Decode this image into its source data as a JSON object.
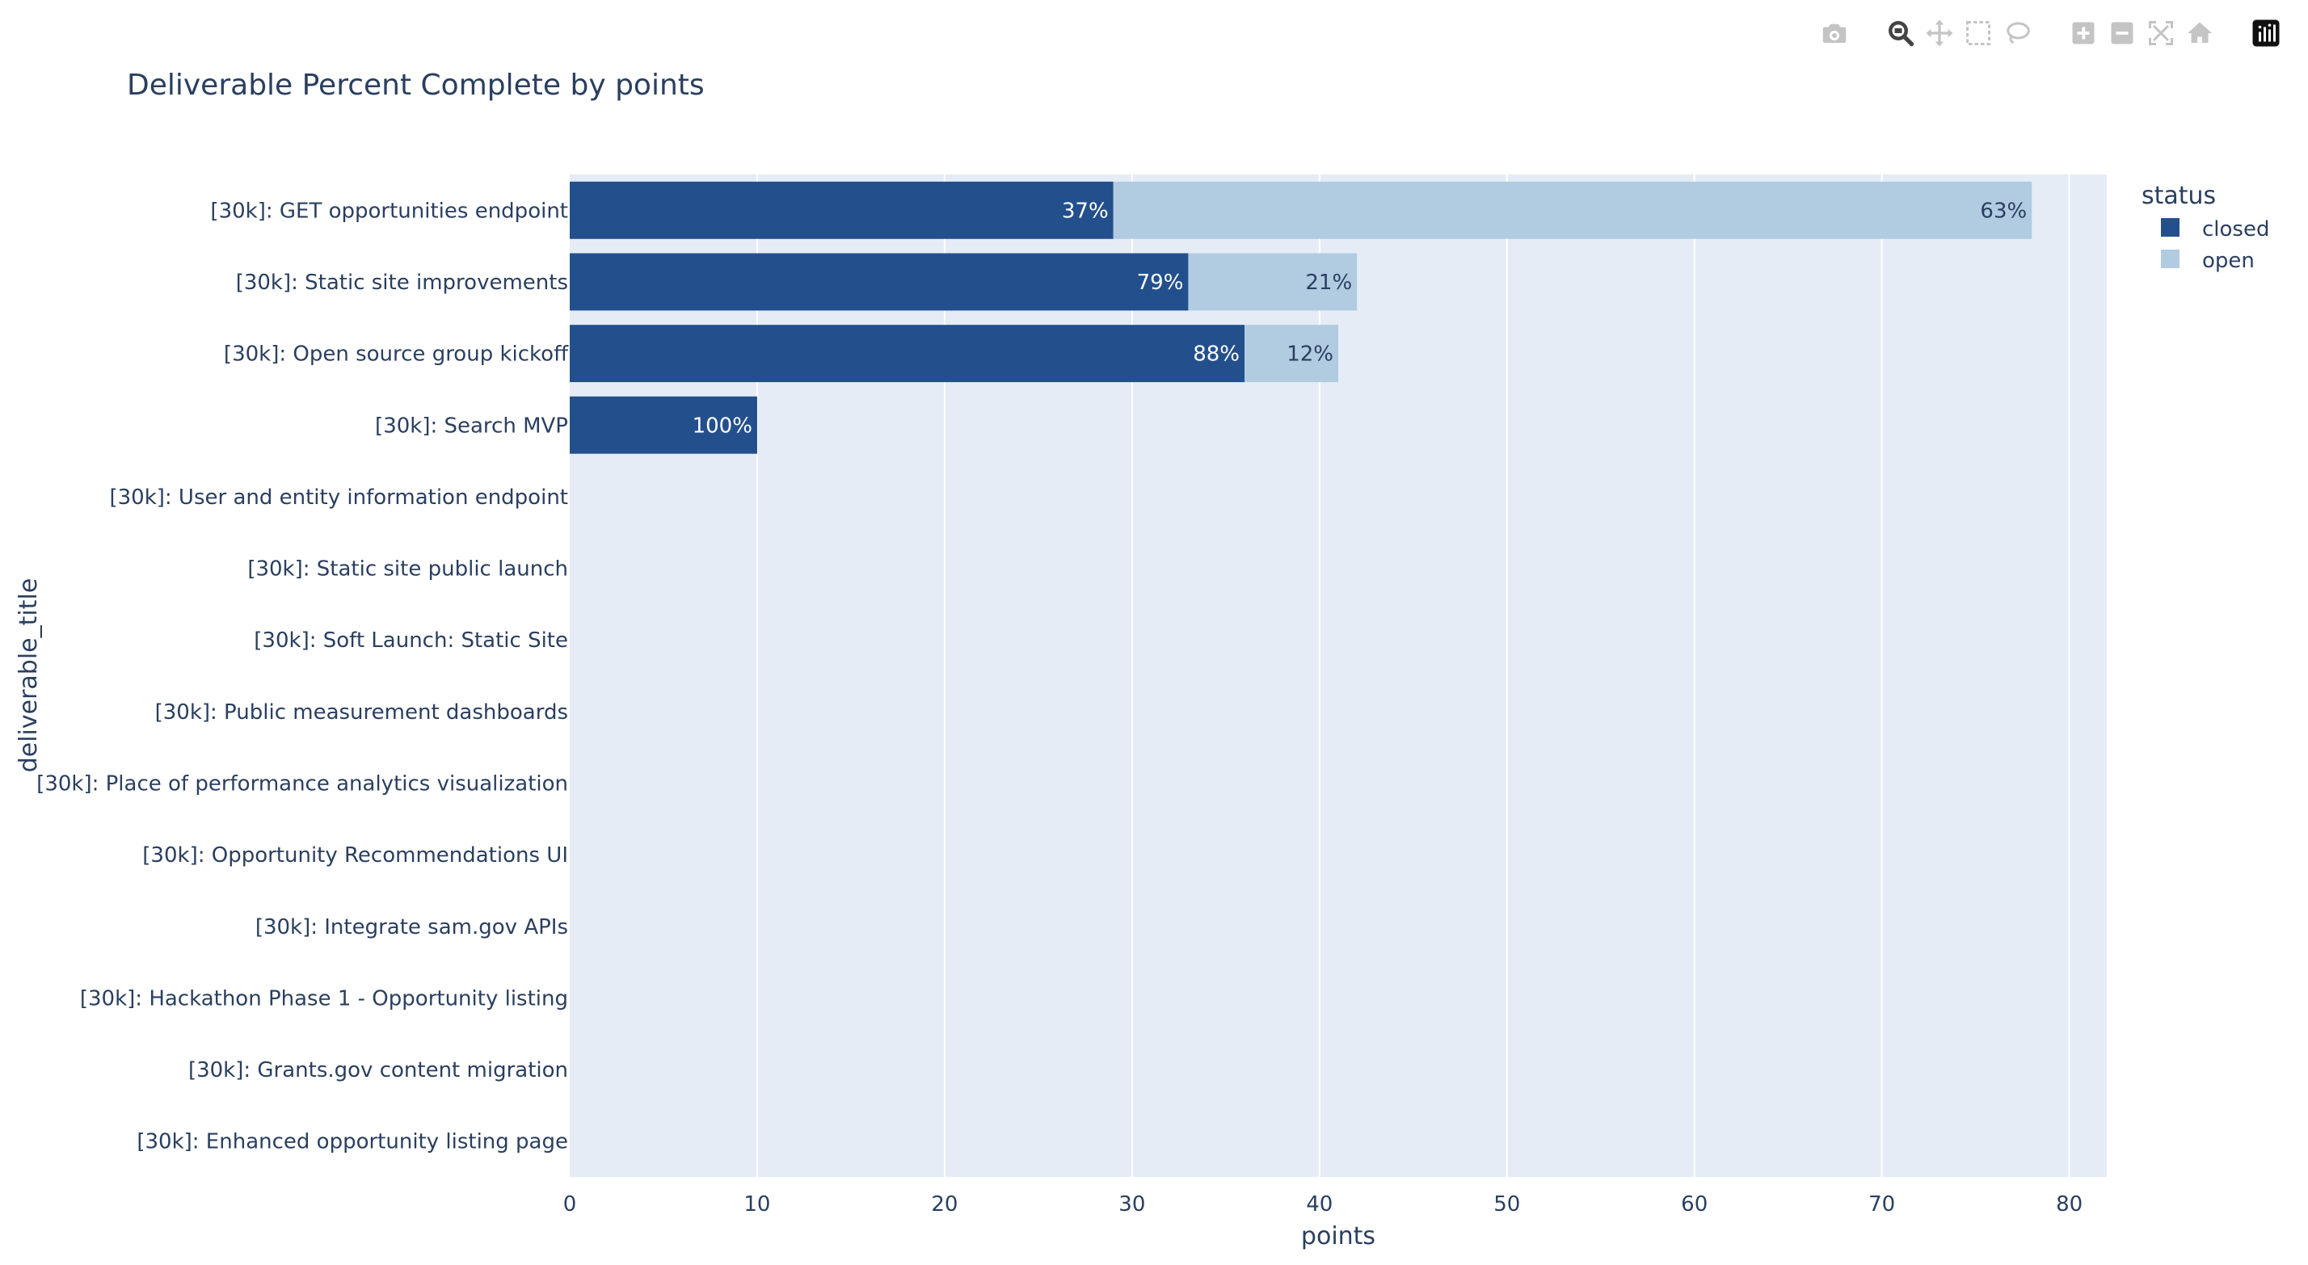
{
  "chart_data": {
    "type": "bar",
    "orientation": "horizontal",
    "barmode": "stack",
    "title": "Deliverable Percent Complete by points",
    "xlabel": "points",
    "ylabel": "deliverable_title",
    "xlim": [
      0,
      82
    ],
    "xticks": [
      0,
      10,
      20,
      30,
      40,
      50,
      60,
      70,
      80
    ],
    "grid": true,
    "legend": {
      "title": "status",
      "placement": "top-right"
    },
    "categories": [
      "[30k]: GET opportunities endpoint",
      "[30k]: Static site improvements",
      "[30k]: Open source group kickoff",
      "[30k]: Search MVP",
      "[30k]: User and entity information endpoint",
      "[30k]: Static site public launch",
      "[30k]: Soft Launch: Static Site",
      "[30k]: Public measurement dashboards",
      "[30k]: Place of performance analytics visualization",
      "[30k]: Opportunity Recommendations UI",
      "[30k]: Integrate sam.gov APIs",
      "[30k]: Hackathon Phase 1 - Opportunity listing",
      "[30k]: Grants.gov content migration",
      "[30k]: Enhanced opportunity listing page"
    ],
    "series": [
      {
        "name": "closed",
        "color": "#23508c",
        "text_color": "#ffffff",
        "values": [
          29,
          33,
          36,
          10,
          0,
          0,
          0,
          0,
          0,
          0,
          0,
          0,
          0,
          0
        ],
        "labels": [
          "37%",
          "79%",
          "88%",
          "100%",
          "",
          "",
          "",
          "",
          "",
          "",
          "",
          "",
          "",
          ""
        ]
      },
      {
        "name": "open",
        "color": "#b1cbe1",
        "text_color": "#2a3f5f",
        "values": [
          49,
          9,
          5,
          0,
          0,
          0,
          0,
          0,
          0,
          0,
          0,
          0,
          0,
          0
        ],
        "labels": [
          "63%",
          "21%",
          "12%",
          "",
          "",
          "",
          "",
          "",
          "",
          "",
          "",
          "",
          "",
          ""
        ]
      }
    ]
  },
  "theme": {
    "plot_bg": "#e5ecf6",
    "paper_bg": "#ffffff",
    "grid_color": "#ffffff",
    "font_color": "#2a3f5f"
  },
  "modebar": {
    "buttons": [
      {
        "name": "download-plot-button",
        "icon": "camera-icon"
      },
      {
        "name": "zoom-button",
        "icon": "zoom-icon",
        "active": true
      },
      {
        "name": "pan-button",
        "icon": "pan-icon"
      },
      {
        "name": "box-select-button",
        "icon": "box-select-icon"
      },
      {
        "name": "lasso-select-button",
        "icon": "lasso-icon"
      },
      {
        "name": "zoom-in-button",
        "icon": "plus-square-icon"
      },
      {
        "name": "zoom-out-button",
        "icon": "minus-square-icon"
      },
      {
        "name": "autoscale-button",
        "icon": "autoscale-icon"
      },
      {
        "name": "reset-axes-button",
        "icon": "home-icon"
      },
      {
        "name": "plotly-logo-link",
        "icon": "plotly-logo-icon"
      }
    ],
    "inactive_color": "#c4c4c4",
    "active_color": "#444444"
  }
}
